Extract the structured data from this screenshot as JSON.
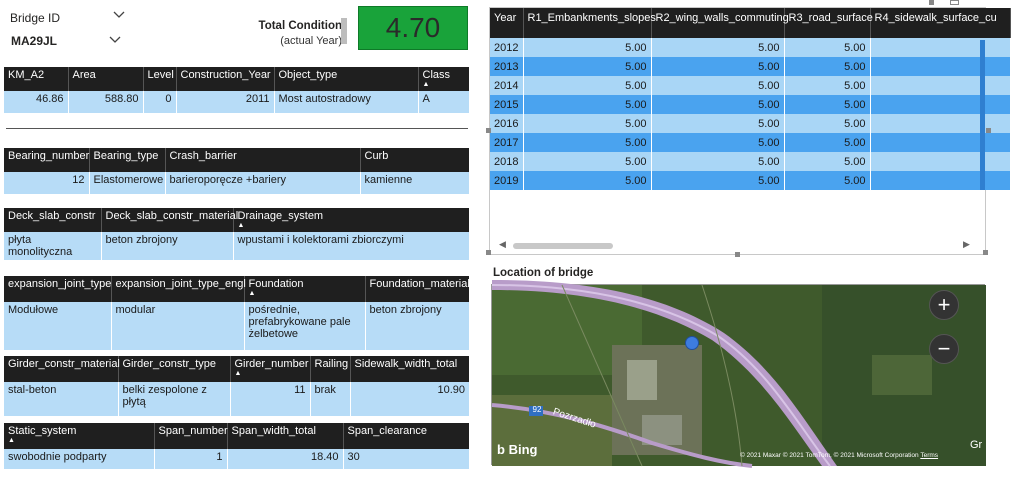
{
  "slicer": {
    "label": "Bridge ID",
    "value": "MA29JL"
  },
  "kpi": {
    "label": "Total Condition",
    "sublabel": "(actual Year)",
    "value": "4.70",
    "color": "#19a33a"
  },
  "table1": {
    "headers": [
      "KM_A2",
      "Area",
      "Level",
      "Construction_Year",
      "Object_type",
      "Class"
    ],
    "row": [
      "46.86",
      "588.80",
      "0",
      "2011",
      "Most autostradowy",
      "A"
    ]
  },
  "table2": {
    "headers": [
      "Bearing_number",
      "Bearing_type",
      "Crash_barrier",
      "Curb"
    ],
    "row": [
      "12",
      "Elastomerowe",
      "barieroporęcze +bariery",
      "kamienne"
    ]
  },
  "table3": {
    "headers": [
      "Deck_slab_constr",
      "Deck_slab_constr_material",
      "Drainage_system"
    ],
    "row": [
      "płyta monolityczna",
      "beton zbrojony",
      "wpustami i kolektorami zbiorczymi"
    ]
  },
  "table4": {
    "headers": [
      "expansion_joint_type",
      "expansion_joint_type_engl",
      "Foundation",
      "Foundation_material"
    ],
    "row": [
      "Modułowe",
      "modular",
      "pośrednie, prefabrykowane pale żelbetowe",
      "beton zbrojony"
    ]
  },
  "table5": {
    "headers": [
      "Girder_constr_material",
      "Girder_constr_type",
      "Girder_number",
      "Railing",
      "Sidewalk_width_total"
    ],
    "row": [
      "stal-beton",
      "belki zespolone z płytą",
      "11",
      "brak",
      "10.90"
    ]
  },
  "table6": {
    "headers": [
      "Static_system",
      "Span_number",
      "Span_width_total",
      "Span_clearance"
    ],
    "row": [
      "swobodnie podparty",
      "1",
      "18.40",
      "30"
    ]
  },
  "year_table": {
    "headers": [
      "Year",
      "R1_Embankments_slopes",
      "R2_wing_walls_commuting",
      "R3_road_surface",
      "R4_sidewalk_surface_cu"
    ],
    "rows": [
      [
        "2012",
        "5.00",
        "5.00",
        "5.00",
        ""
      ],
      [
        "2013",
        "5.00",
        "5.00",
        "5.00",
        ""
      ],
      [
        "2014",
        "5.00",
        "5.00",
        "5.00",
        ""
      ],
      [
        "2015",
        "5.00",
        "5.00",
        "5.00",
        ""
      ],
      [
        "2016",
        "5.00",
        "5.00",
        "5.00",
        ""
      ],
      [
        "2017",
        "5.00",
        "5.00",
        "5.00",
        ""
      ],
      [
        "2018",
        "5.00",
        "5.00",
        "5.00",
        ""
      ],
      [
        "2019",
        "5.00",
        "5.00",
        "5.00",
        ""
      ]
    ]
  },
  "map": {
    "title": "Location of bridge",
    "provider": "Bing",
    "copyright": "© 2021 Maxar © 2021 TomTom, © 2021 Microsoft Corporation",
    "terms": "Terms",
    "road_label": "Pozrzadło",
    "road_number": "92",
    "edge_label": "Gr",
    "zoom_in": "+",
    "zoom_out": "−"
  }
}
